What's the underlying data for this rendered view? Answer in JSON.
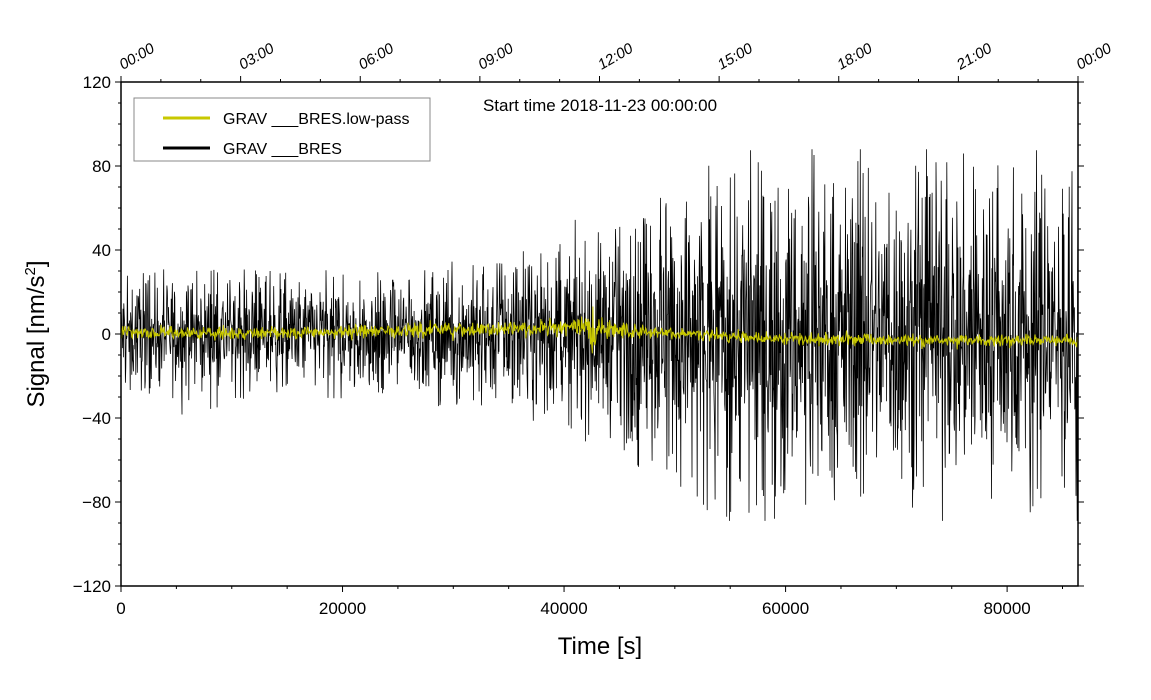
{
  "chart_data": {
    "type": "line",
    "title": "",
    "annotation": "Start time 2018-11-23 00:00:00",
    "xlabel": "Time [s]",
    "ylabel_main": "Signal [nm/s",
    "ylabel_sup": "2",
    "ylabel_close": "]",
    "xlim": [
      0,
      86400
    ],
    "ylim": [
      -120,
      120
    ],
    "x_ticks": [
      0,
      20000,
      40000,
      60000,
      80000
    ],
    "x_tick_labels": [
      "0",
      "20000",
      "40000",
      "60000",
      "80000"
    ],
    "y_ticks": [
      -120,
      -80,
      -40,
      0,
      40,
      80,
      120
    ],
    "y_tick_labels": [
      "−120",
      "−80",
      "−40",
      "0",
      "40",
      "80",
      "120"
    ],
    "top_axis_label_values": [
      0,
      10800,
      21600,
      32400,
      43200,
      54000,
      64800,
      75600,
      86400
    ],
    "top_axis_labels": [
      "00:00",
      "03:00",
      "06:00",
      "09:00",
      "12:00",
      "15:00",
      "18:00",
      "21:00",
      "00:00"
    ],
    "legend_position": "top-left",
    "series": [
      {
        "name": "GRAV ___BRES.low-pass",
        "color": "#c8c800",
        "envelope_x": [
          0,
          10000,
          20000,
          30000,
          40000,
          42000,
          42600,
          43400,
          50000,
          60000,
          70000,
          80000,
          86400
        ],
        "envelope_center": [
          1,
          0,
          1,
          2,
          3,
          3,
          2,
          2,
          0,
          -2,
          -3,
          -3,
          -3
        ],
        "envelope_amplitude": [
          3,
          3,
          3,
          4,
          4,
          5,
          17,
          5,
          3,
          3,
          3,
          3,
          3
        ]
      },
      {
        "name": "GRAV ___BRES",
        "color": "#000000",
        "envelope_x": [
          0,
          10000,
          20000,
          30000,
          35000,
          40000,
          45000,
          50000,
          55000,
          60000,
          65000,
          70000,
          75000,
          80000,
          86400
        ],
        "envelope_center": [
          0,
          0,
          0,
          0,
          0,
          0,
          0,
          0,
          0,
          0,
          0,
          0,
          0,
          0,
          0
        ],
        "envelope_amplitude": [
          22,
          22,
          22,
          25,
          28,
          32,
          42,
          55,
          65,
          65,
          60,
          62,
          63,
          62,
          65
        ],
        "peak_max": 88,
        "peak_min": -89
      }
    ]
  }
}
